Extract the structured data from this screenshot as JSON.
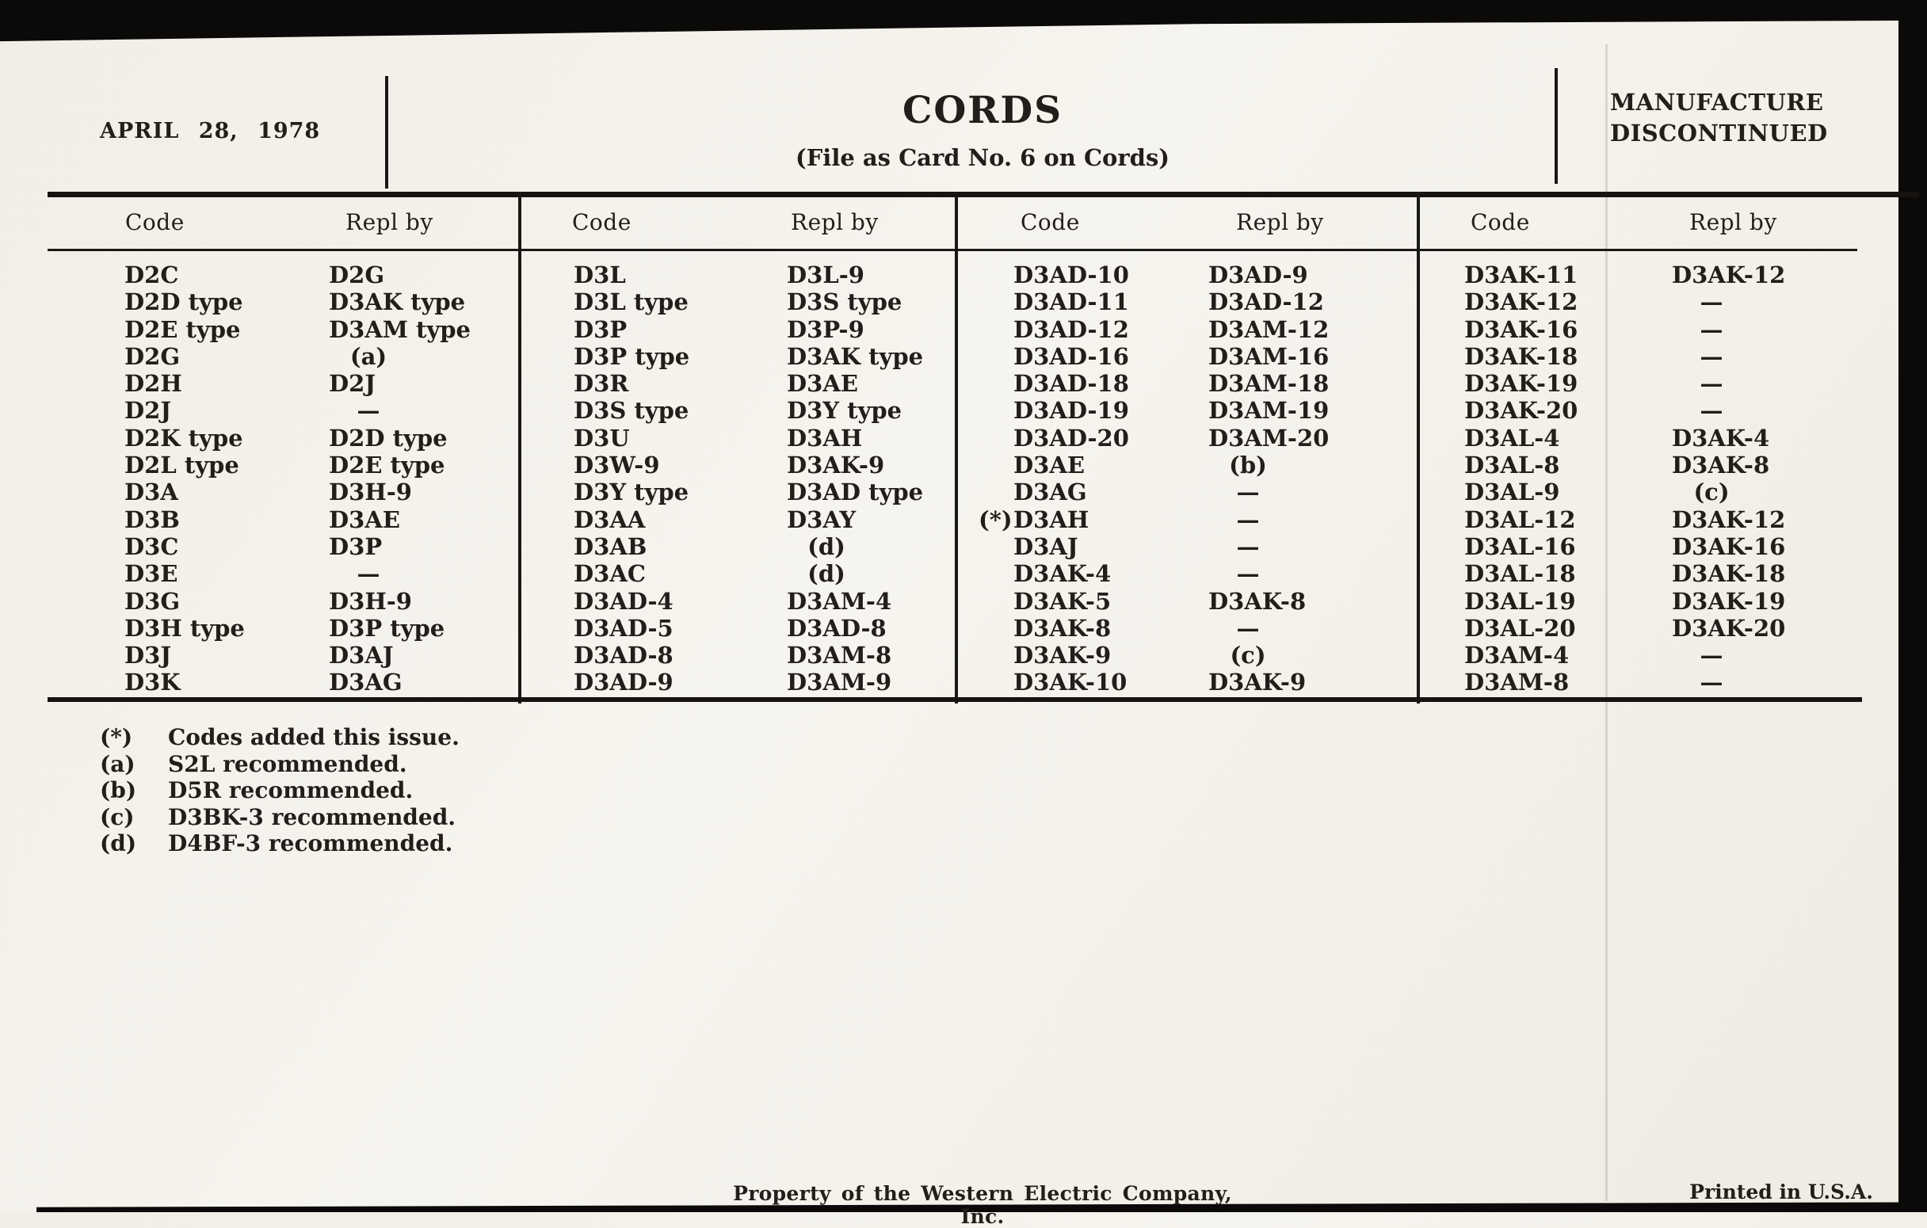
{
  "header": {
    "date": "APRIL 28, 1978",
    "title": "CORDS",
    "subtitle": "(File as Card No. 6 on Cords)",
    "status_line1": "MANUFACTURE",
    "status_line2": "DISCONTINUED"
  },
  "table": {
    "col_headers": {
      "code": "Code",
      "repl": "Repl by"
    },
    "groups": [
      {
        "rows": [
          {
            "code": "D2C",
            "repl": "D2G"
          },
          {
            "code": "D2D type",
            "repl": "D3AK type"
          },
          {
            "code": "D2E type",
            "repl": "D3AM type"
          },
          {
            "code": "D2G",
            "repl": "(a)"
          },
          {
            "code": "D2H",
            "repl": "D2J"
          },
          {
            "code": "D2J",
            "repl": "—"
          },
          {
            "code": "D2K type",
            "repl": "D2D type"
          },
          {
            "code": "D2L type",
            "repl": "D2E type"
          },
          {
            "code": "D3A",
            "repl": "D3H-9"
          },
          {
            "code": "D3B",
            "repl": "D3AE"
          },
          {
            "code": "D3C",
            "repl": "D3P"
          },
          {
            "code": "D3E",
            "repl": "—"
          },
          {
            "code": "D3G",
            "repl": "D3H-9"
          },
          {
            "code": "D3H type",
            "repl": "D3P type"
          },
          {
            "code": "D3J",
            "repl": "D3AJ"
          },
          {
            "code": "D3K",
            "repl": "D3AG"
          }
        ]
      },
      {
        "rows": [
          {
            "code": "D3L",
            "repl": "D3L-9"
          },
          {
            "code": "D3L type",
            "repl": "D3S type"
          },
          {
            "code": "D3P",
            "repl": "D3P-9"
          },
          {
            "code": "D3P type",
            "repl": "D3AK type"
          },
          {
            "code": "D3R",
            "repl": "D3AE"
          },
          {
            "code": "D3S type",
            "repl": "D3Y type"
          },
          {
            "code": "D3U",
            "repl": "D3AH"
          },
          {
            "code": "D3W-9",
            "repl": "D3AK-9"
          },
          {
            "code": "D3Y type",
            "repl": "D3AD type"
          },
          {
            "code": "D3AA",
            "repl": "D3AY"
          },
          {
            "code": "D3AB",
            "repl": "(d)"
          },
          {
            "code": "D3AC",
            "repl": "(d)"
          },
          {
            "code": "D3AD-4",
            "repl": "D3AM-4"
          },
          {
            "code": "D3AD-5",
            "repl": "D3AD-8"
          },
          {
            "code": "D3AD-8",
            "repl": "D3AM-8"
          },
          {
            "code": "D3AD-9",
            "repl": "D3AM-9"
          }
        ]
      },
      {
        "rows": [
          {
            "code": "D3AD-10",
            "repl": "D3AD-9"
          },
          {
            "code": "D3AD-11",
            "repl": "D3AD-12"
          },
          {
            "code": "D3AD-12",
            "repl": "D3AM-12"
          },
          {
            "code": "D3AD-16",
            "repl": "D3AM-16"
          },
          {
            "code": "D3AD-18",
            "repl": "D3AM-18"
          },
          {
            "code": "D3AD-19",
            "repl": "D3AM-19"
          },
          {
            "code": "D3AD-20",
            "repl": "D3AM-20"
          },
          {
            "code": "D3AE",
            "repl": "(b)"
          },
          {
            "code": "D3AG",
            "repl": "—"
          },
          {
            "prefix": "(*)",
            "code": "D3AH",
            "repl": "—"
          },
          {
            "code": "D3AJ",
            "repl": "—"
          },
          {
            "code": "D3AK-4",
            "repl": "—"
          },
          {
            "code": "D3AK-5",
            "repl": "D3AK-8"
          },
          {
            "code": "D3AK-8",
            "repl": "—"
          },
          {
            "code": "D3AK-9",
            "repl": "(c)"
          },
          {
            "code": "D3AK-10",
            "repl": "D3AK-9"
          }
        ]
      },
      {
        "rows": [
          {
            "code": "D3AK-11",
            "repl": "D3AK-12"
          },
          {
            "code": "D3AK-12",
            "repl": "—"
          },
          {
            "code": "D3AK-16",
            "repl": "—"
          },
          {
            "code": "D3AK-18",
            "repl": "—"
          },
          {
            "code": "D3AK-19",
            "repl": "—"
          },
          {
            "code": "D3AK-20",
            "repl": "—"
          },
          {
            "code": "D3AL-4",
            "repl": "D3AK-4"
          },
          {
            "code": "D3AL-8",
            "repl": "D3AK-8"
          },
          {
            "code": "D3AL-9",
            "repl": "(c)"
          },
          {
            "code": "D3AL-12",
            "repl": "D3AK-12"
          },
          {
            "code": "D3AL-16",
            "repl": "D3AK-16"
          },
          {
            "code": "D3AL-18",
            "repl": "D3AK-18"
          },
          {
            "code": "D3AL-19",
            "repl": "D3AK-19"
          },
          {
            "code": "D3AL-20",
            "repl": "D3AK-20"
          },
          {
            "code": "D3AM-4",
            "repl": "—"
          },
          {
            "code": "D3AM-8",
            "repl": "—"
          }
        ]
      }
    ]
  },
  "footnotes": [
    {
      "label": "(*)",
      "text": "Codes added this issue."
    },
    {
      "label": "(a)",
      "text": "S2L recommended."
    },
    {
      "label": "(b)",
      "text": "D5R recommended."
    },
    {
      "label": "(c)",
      "text": "D3BK-3 recommended."
    },
    {
      "label": "(d)",
      "text": "D4BF-3 recommended."
    }
  ],
  "footer": {
    "ownership": "Property of the Western Electric Company, Inc.",
    "printed": "Printed in U.S.A."
  },
  "colors": {
    "paper": "#f3f0e9",
    "ink": "#221f1b",
    "scan_border": "#0b0a09"
  }
}
